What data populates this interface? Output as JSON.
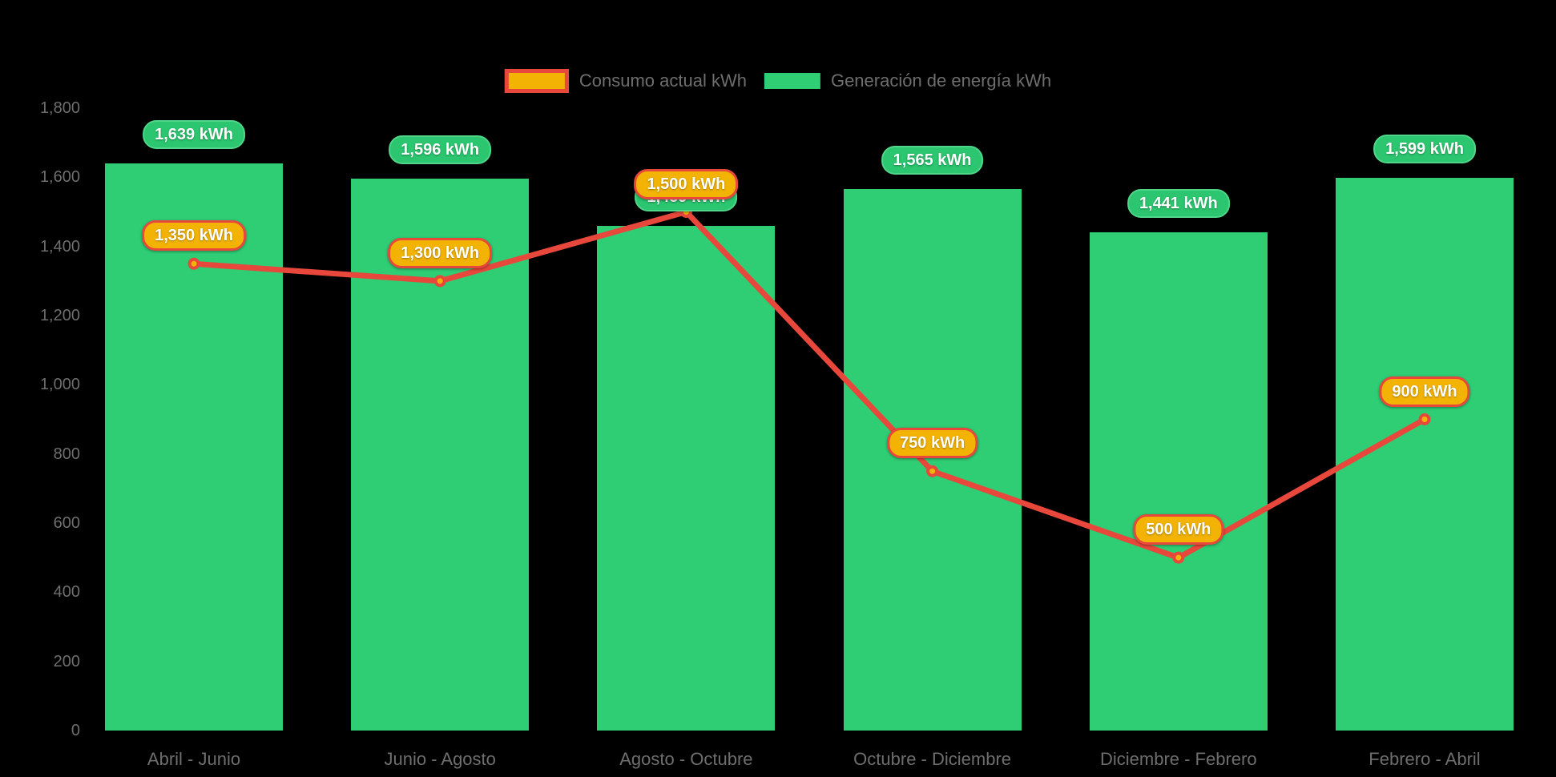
{
  "chart_data": {
    "type": "combo",
    "categories": [
      "Abril - Junio",
      "Junio - Agosto",
      "Agosto - Octubre",
      "Octubre - Diciembre",
      "Diciembre - Febrero",
      "Febrero - Abril"
    ],
    "series": [
      {
        "name": "Generación de energía kWh",
        "type": "bar",
        "values": [
          1639,
          1596,
          1459,
          1565,
          1441,
          1599
        ],
        "labels": [
          "1,639 kWh",
          "1,596 kWh",
          "1,459 kWh",
          "1,565 kWh",
          "1,441 kWh",
          "1,599 kWh"
        ]
      },
      {
        "name": "Consumo actual kWh",
        "type": "line",
        "values": [
          1350,
          1300,
          1500,
          750,
          500,
          900
        ],
        "labels": [
          "1,350 kWh",
          "1,300 kWh",
          "1,500 kWh",
          "750 kWh",
          "500 kWh",
          "900 kWh"
        ]
      }
    ],
    "ylim": [
      0,
      1800
    ],
    "yticks": [
      0,
      200,
      400,
      600,
      800,
      1000,
      1200,
      1400,
      1600,
      1800
    ],
    "ytick_labels": [
      "0",
      "200",
      "400",
      "600",
      "800",
      "1,000",
      "1,200",
      "1,400",
      "1,600",
      "1,800"
    ],
    "grid": false,
    "legend_position": "top-center"
  },
  "legend": {
    "items": [
      {
        "label": "Consumo actual kWh"
      },
      {
        "label": "Generación de energía kWh"
      }
    ]
  },
  "colors": {
    "background": "#000000",
    "bar_fill": "#2fcd74",
    "bar_badge_fill": "#2bc66f",
    "bar_badge_border": "#4fd689",
    "line_stroke": "#e8483c",
    "marker_fill": "#f2b305",
    "line_badge_fill": "#f2b305",
    "line_badge_border": "#e8483c",
    "axis_text": "#6e6e6e",
    "badge_text": "#ffffff"
  }
}
